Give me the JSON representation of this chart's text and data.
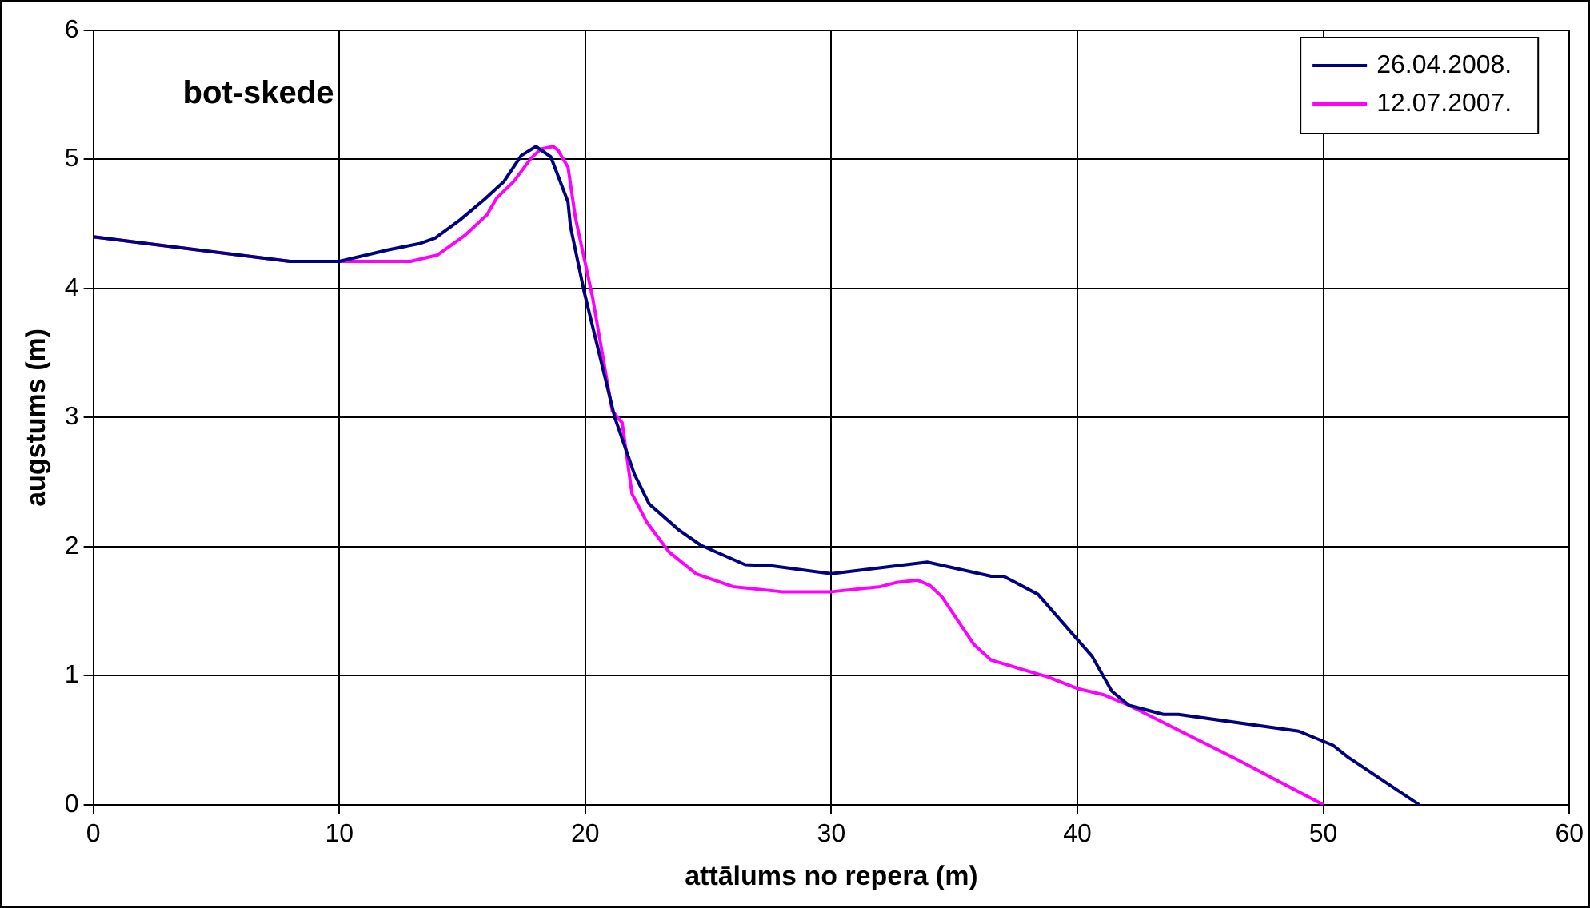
{
  "chart_data": {
    "type": "line",
    "title": "bot-skede",
    "xlabel": "attālums no repera (m)",
    "ylabel": "augstums (m)",
    "xlim": [
      0,
      60
    ],
    "xticks": [
      0,
      10,
      20,
      30,
      40,
      50,
      60
    ],
    "ylim": [
      0,
      6
    ],
    "yticks": [
      0,
      1,
      2,
      3,
      4,
      5,
      6
    ],
    "grid": true,
    "legend": "top right",
    "marker": "none",
    "line_style": "solid",
    "series": [
      {
        "name": "26.04.2008.",
        "color": "#000080",
        "x": [
          0,
          8,
          10,
          12,
          13.3,
          13.9,
          14.9,
          15.9,
          16.7,
          17.4,
          18,
          18.6,
          19.3,
          19.4,
          19.95,
          21.2,
          22,
          22.6,
          23.8,
          24.7,
          26.5,
          27.6,
          30,
          33.9,
          36.5,
          37,
          38.4,
          40,
          40.6,
          41.4,
          42.1,
          43.5,
          44.1,
          49,
          50.4,
          51,
          53.9
        ],
        "values": [
          4.4,
          4.21,
          4.21,
          4.3,
          4.35,
          4.39,
          4.53,
          4.69,
          4.83,
          5.03,
          5.1,
          5.02,
          4.67,
          4.48,
          3.98,
          3,
          2.56,
          2.33,
          2.13,
          2.01,
          1.86,
          1.85,
          1.79,
          1.88,
          1.77,
          1.77,
          1.63,
          1.28,
          1.15,
          0.88,
          0.77,
          0.7,
          0.7,
          0.57,
          0.46,
          0.37,
          0
        ]
      },
      {
        "name": "12.07.2007.",
        "color": "#ff00ff",
        "x": [
          0,
          8,
          10,
          12.9,
          14,
          15.1,
          16,
          16.4,
          17.1,
          17.8,
          18.2,
          18.7,
          18.9,
          19.3,
          19.6,
          20.3,
          21.1,
          21.5,
          21.9,
          22.5,
          23.4,
          24.5,
          26,
          28,
          30,
          32,
          32.6,
          33.5,
          34,
          34.5,
          35.2,
          35.8,
          36.5,
          38.8,
          40,
          41.1,
          42.1,
          46.5,
          50
        ],
        "values": [
          4.4,
          4.21,
          4.21,
          4.21,
          4.26,
          4.41,
          4.57,
          4.7,
          4.83,
          5.01,
          5.08,
          5.1,
          5.07,
          4.94,
          4.55,
          3.93,
          3.05,
          2.96,
          2.41,
          2.19,
          1.96,
          1.79,
          1.69,
          1.65,
          1.65,
          1.69,
          1.72,
          1.74,
          1.7,
          1.61,
          1.41,
          1.24,
          1.12,
          0.99,
          0.9,
          0.85,
          0.77,
          0.35,
          0
        ]
      }
    ]
  }
}
